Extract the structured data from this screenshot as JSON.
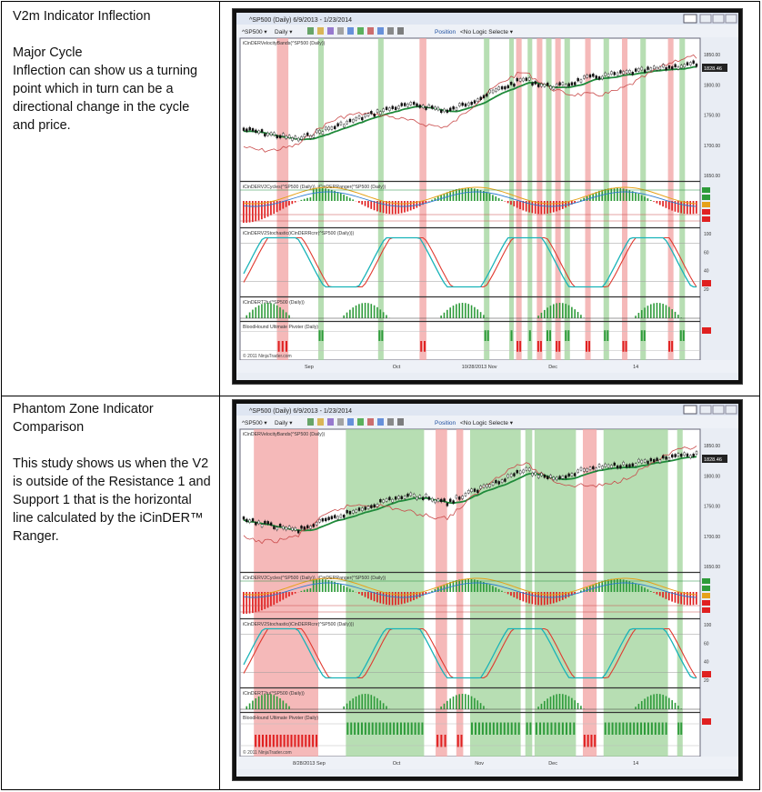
{
  "sections": [
    {
      "title": "V2m Indicator Inflection",
      "heading": "Major Cycle",
      "body": "Inflection can show us a turning point which in turn can be a directional change in the cycle and price.",
      "window": {
        "title": "^SP500 (Daily)  6/9/2013 - 1/23/2014",
        "toolbar_symbol": "^SP500",
        "toolbar_interval": "Daily",
        "toolbar_position": "Position",
        "toolbar_logic": "<No Logic Selecte",
        "panel_labels": [
          "iCinDERVelocityBands(^SP500 (Daily))",
          "iCinDERV2Cycles(^SP500 (Daily)), iCinDERRanger(^SP500 (Daily))",
          "iCinDERV2Stochastic(iCinDERRcnr(^SP500 (Daily)))",
          "iCinDERT2iu(^SP500 (Daily))",
          "BloodHound Ultimate Pivoter (Daily)"
        ],
        "price_ticks": [
          "1850.00",
          "1800.00",
          "1750.00",
          "1700.00",
          "1650.00"
        ],
        "price_current": "1828.46",
        "stoch_ticks": [
          "100",
          "60",
          "40",
          "20"
        ],
        "x_labels": [
          "Sep",
          "Oct",
          "10/28/2013 Nov",
          "Dec",
          "14"
        ],
        "copyright": "© 2011 NinjaTrader.com"
      }
    },
    {
      "title": "Phantom Zone Indicator Comparison",
      "body": "This study shows us when the V2 is outside of the Resistance 1 and Support 1 that is the horizontal line calculated by the iCinDER™ Ranger.",
      "window": {
        "title": "^SP500 (Daily)  6/9/2013 - 1/23/2014",
        "toolbar_symbol": "^SP500",
        "toolbar_interval": "Daily",
        "toolbar_position": "Position",
        "toolbar_logic": "<No Logic Selecte",
        "panel_labels": [
          "iCinDERVelocityBands(^SP500 (Daily))",
          "iCinDERV2Cycles(^SP500 (Daily)), iCinDERRanger(^SP500 (Daily))",
          "iCinDERV2Stochastic(iCinDERRcnr(^SP500 (Daily)))",
          "iCinDERT2iu(^SP500 (Daily))",
          "BloodHound Ultimate Pivoter (Daily)"
        ],
        "price_ticks": [
          "1850.00",
          "1800.00",
          "1750.00",
          "1700.00",
          "1650.00"
        ],
        "price_current": "1828.46",
        "stoch_ticks": [
          "100",
          "60",
          "40",
          "20"
        ],
        "x_labels": [
          "8/28/2013 Sep",
          "Oct",
          "Nov",
          "Dec",
          "14"
        ],
        "copyright": "© 2011 NinjaTrader.com"
      }
    }
  ],
  "colors": {
    "green_band": "#9fd39a",
    "red_band": "#f2a2a2",
    "price_green": "#1f8a3a",
    "price_red": "#c94a4a",
    "hist_green": "#2e9b3a",
    "hist_red": "#e02020",
    "stoch_cyan": "#19b3b8",
    "stoch_red": "#e0392f",
    "cycle_orange": "#e6a21a"
  }
}
